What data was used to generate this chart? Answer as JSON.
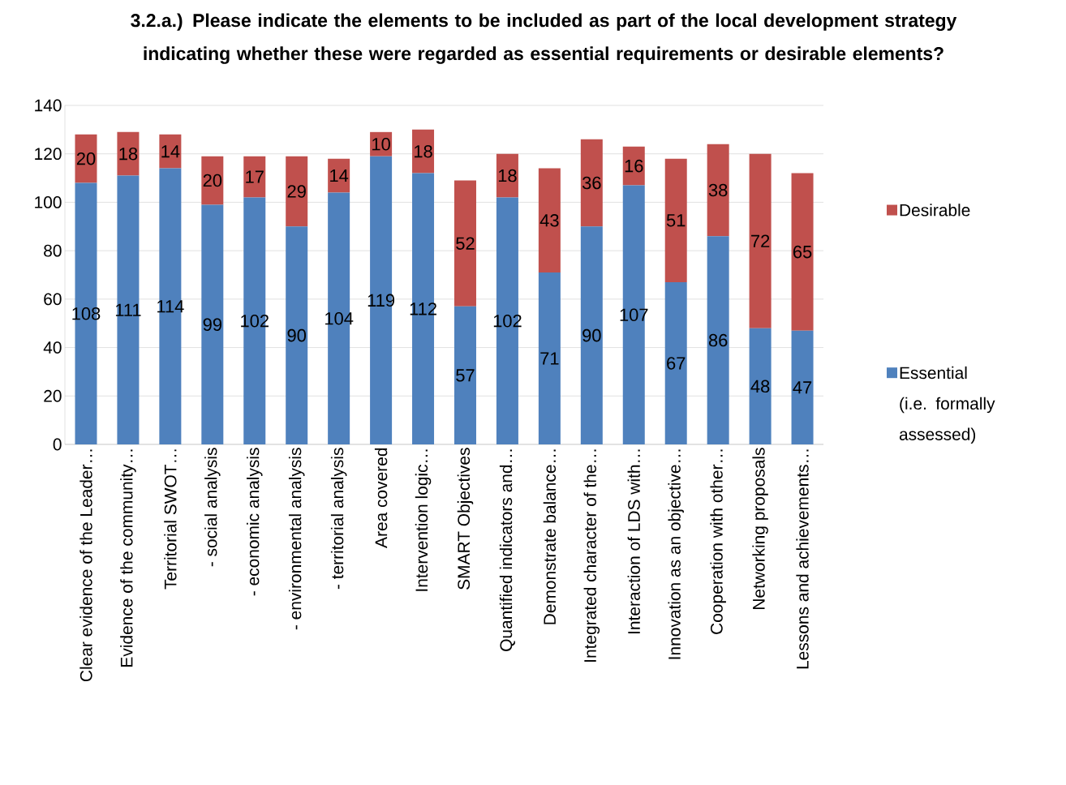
{
  "chart_data": {
    "type": "bar",
    "stacked": true,
    "title": "3.2.a.) Please indicate the elements to be included as part of the local development strategy indicating whether these were regarded as essential requirements or desirable elements?",
    "categories": [
      "Clear evidence of the Leader…",
      "Evidence of the community…",
      "Territorial SWOT…",
      "- social analysis",
      "- economic analysis",
      "- environmental analysis",
      "- territorial analysis",
      "Area covered",
      "Intervention logic…",
      "SMART Objectives",
      "Quantified indicators and…",
      "Demonstrate balance…",
      "Integrated character of the…",
      "Interaction of LDS with…",
      "Innovation as an objective…",
      "Cooperation with other…",
      "Networking proposals",
      "Lessons and achievements…"
    ],
    "series": [
      {
        "name": "Essential (i.e. formally assessed)",
        "color": "#4f81bd",
        "values": [
          108,
          111,
          114,
          99,
          102,
          90,
          104,
          119,
          112,
          57,
          102,
          71,
          90,
          107,
          67,
          86,
          48,
          47
        ]
      },
      {
        "name": "Desirable",
        "color": "#c0504d",
        "values": [
          20,
          18,
          14,
          20,
          17,
          29,
          14,
          10,
          18,
          52,
          18,
          43,
          36,
          16,
          51,
          38,
          72,
          65
        ]
      }
    ],
    "ylim": [
      0,
      140
    ],
    "yticks": [
      0,
      20,
      40,
      60,
      80,
      100,
      120,
      140
    ],
    "grid": "y",
    "legend": "right",
    "data_labels": true
  }
}
